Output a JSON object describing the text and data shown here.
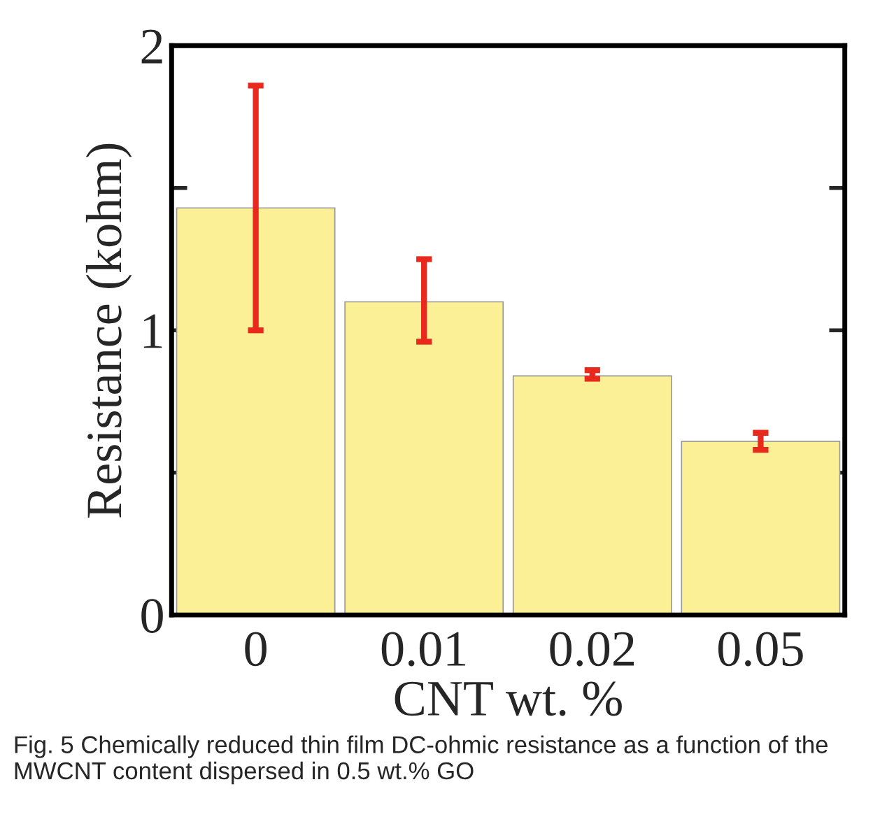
{
  "chart_data": {
    "type": "bar",
    "xlabel": "CNT wt. %",
    "ylabel": "Resistance (kohm)",
    "categories": [
      "0",
      "0.01",
      "0.02",
      "0.05"
    ],
    "values": [
      1.43,
      1.1,
      0.84,
      0.61
    ],
    "errors": [
      [
        1.0,
        1.86
      ],
      [
        0.96,
        1.25
      ],
      [
        0.83,
        0.86
      ],
      [
        0.58,
        0.64
      ]
    ],
    "color": "#fbf095",
    "ylim": [
      0,
      2
    ],
    "yticks": [
      0,
      {
        "value": 0.5,
        "label": null
      },
      1,
      {
        "value": 1.5,
        "label": null
      },
      2
    ],
    "grid": false,
    "annotations": [
      "Fig. 5 Chemically reduced thin film DC-ohmic resistance as a function of the MWCNT content dispersed in 0.5 wt.% GO"
    ]
  }
}
